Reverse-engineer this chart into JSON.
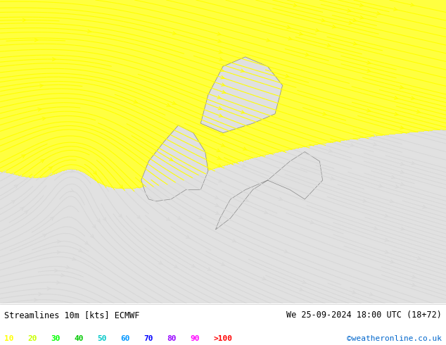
{
  "title_left": "Streamlines 10m [kts] ECMWF",
  "title_right": "We 25-09-2024 18:00 UTC (18+72)",
  "credit": "©weatheronline.co.uk",
  "legend_values": [
    "10",
    "20",
    "30",
    "40",
    "50",
    "60",
    "70",
    "80",
    "90",
    ">100"
  ],
  "legend_colors": [
    "#ffff00",
    "#c8ff00",
    "#00ff00",
    "#00c800",
    "#00c8c8",
    "#0096ff",
    "#0000ff",
    "#9600ff",
    "#ff00ff",
    "#ff0000"
  ],
  "bg_color": "#d8d8d8",
  "land_color": "#e8e8e8",
  "sea_color": "#d0d0d0",
  "map_bg": "#d8d8d8",
  "panel_bg": "#ffffff",
  "bottom_bar_color": "#f0f0f0",
  "lon_min": -20,
  "lon_max": 10,
  "lat_min": 46,
  "lat_max": 62
}
